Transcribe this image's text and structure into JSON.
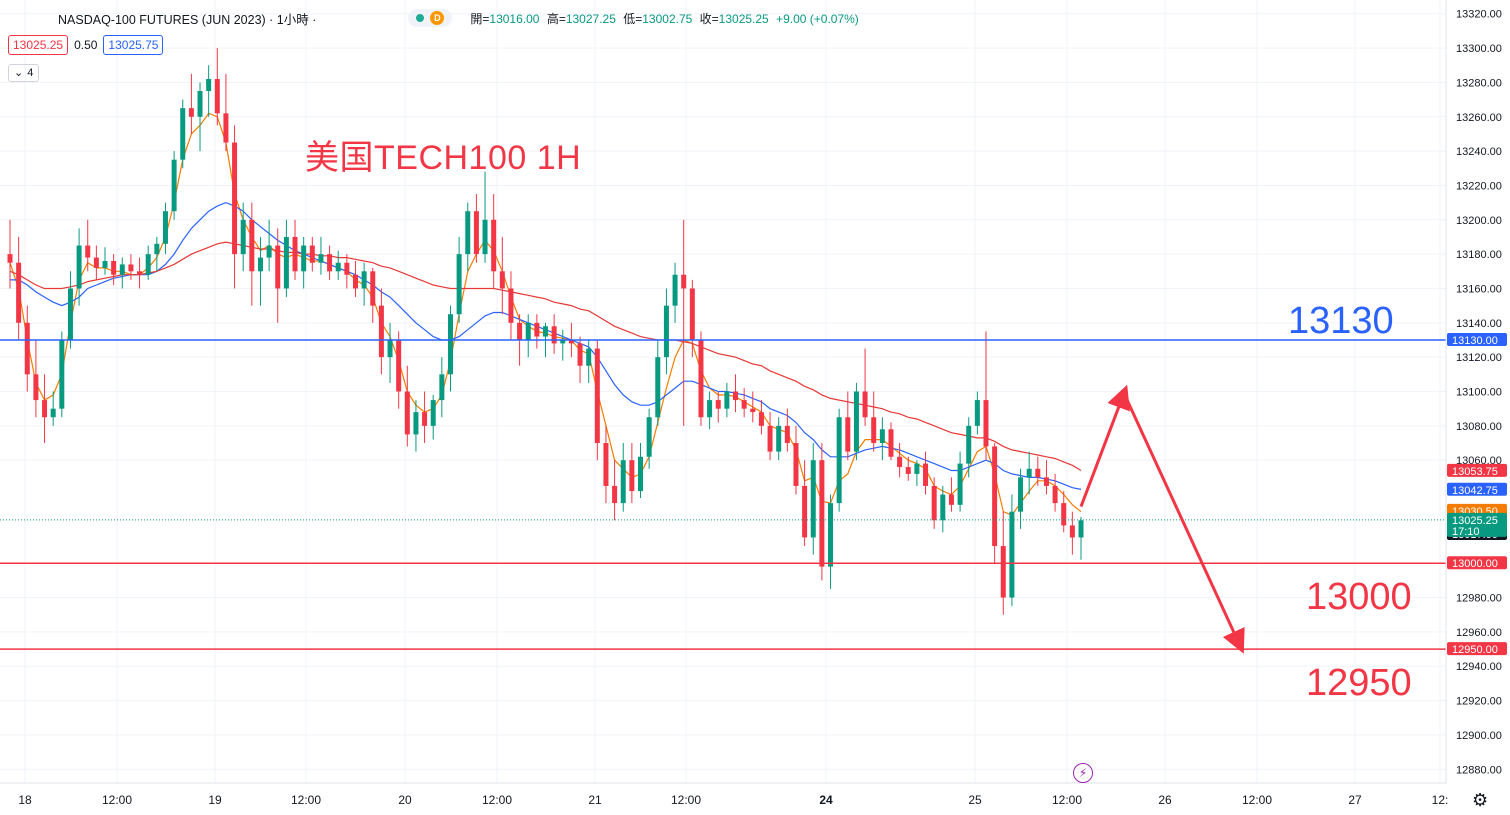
{
  "header": {
    "symbol_title": "NASDAQ-100 FUTURES (JUN 2023) · 1小時 ·",
    "ohlc": [
      {
        "k": "開=",
        "v": "13016.00"
      },
      {
        "k": "高=",
        "v": "13027.25"
      },
      {
        "k": "低=",
        "v": "13002.75"
      },
      {
        "k": "收=",
        "v": "13025.25"
      },
      {
        "k": "",
        "v": "+9.00 (+0.07%)"
      }
    ],
    "market_status_letter": "D",
    "sell_price": "13025.25",
    "spread": "0.50",
    "buy_price": "13025.75",
    "indicator_count": "4"
  },
  "overlay_title": "美国TECH100 1H",
  "levels": {
    "l13130": "13130",
    "l13000": "13000",
    "l12950": "12950"
  },
  "chart_data": {
    "type": "candlestick",
    "timeframe": "1H",
    "x_ticks": [
      "18",
      "12:00",
      "19",
      "12:00",
      "20",
      "12:00",
      "21",
      "12:00",
      "24",
      "25",
      "12:00",
      "26",
      "12:00",
      "27",
      "12:"
    ],
    "y_ticks": [
      13320,
      13300,
      13280,
      13260,
      13240,
      13220,
      13200,
      13180,
      13160,
      13140,
      13120,
      13100,
      13080,
      13060,
      12980,
      12960,
      12940,
      12920,
      12900,
      12880
    ],
    "y_tick_labels": [
      "13320.00",
      "13300.00",
      "13280.00",
      "13260.00",
      "13240.00",
      "13220.00",
      "13200.00",
      "13180.00",
      "13160.00",
      "13140.00",
      "13120.00",
      "13100.00",
      "13080.00",
      "13060.00",
      "12980.00",
      "12960.00",
      "12940.00",
      "12920.00",
      "12900.00",
      "12880.00"
    ],
    "ylim": [
      12872,
      13328
    ],
    "horizontal_lines": [
      {
        "value": 13130,
        "color": "#2962ff",
        "label": "13130.00"
      },
      {
        "value": 13000,
        "color": "#f23645",
        "label": "13000.00"
      },
      {
        "value": 12950,
        "color": "#f23645",
        "label": "12950.00"
      }
    ],
    "current_price": {
      "value": 13025.25,
      "label": "13025.25",
      "countdown": "17:10"
    },
    "price_tags": [
      {
        "value": 13053.75,
        "label": "13053.75",
        "color": "#f23645"
      },
      {
        "value": 13042.75,
        "label": "13042.75",
        "color": "#2962ff"
      },
      {
        "value": 13030.5,
        "label": "13030.50",
        "color": "#f57c00"
      },
      {
        "value": 13017.0,
        "label": "13017.00",
        "color": "#131722"
      }
    ],
    "candles_ohlc": [
      [
        13180,
        13200,
        13160,
        13175
      ],
      [
        13175,
        13190,
        13130,
        13140
      ],
      [
        13140,
        13150,
        13100,
        13110
      ],
      [
        13110,
        13130,
        13085,
        13095
      ],
      [
        13095,
        13110,
        13070,
        13085
      ],
      [
        13085,
        13100,
        13080,
        13090
      ],
      [
        13090,
        13135,
        13085,
        13130
      ],
      [
        13130,
        13170,
        13125,
        13160
      ],
      [
        13160,
        13195,
        13150,
        13185
      ],
      [
        13185,
        13200,
        13170,
        13178
      ],
      [
        13178,
        13185,
        13165,
        13172
      ],
      [
        13172,
        13184,
        13168,
        13176
      ],
      [
        13176,
        13180,
        13162,
        13168
      ],
      [
        13168,
        13178,
        13160,
        13174
      ],
      [
        13174,
        13180,
        13165,
        13170
      ],
      [
        13170,
        13178,
        13160,
        13168
      ],
      [
        13168,
        13185,
        13165,
        13180
      ],
      [
        13180,
        13190,
        13170,
        13186
      ],
      [
        13186,
        13210,
        13180,
        13205
      ],
      [
        13205,
        13240,
        13200,
        13235
      ],
      [
        13235,
        13270,
        13230,
        13265
      ],
      [
        13265,
        13285,
        13250,
        13260
      ],
      [
        13260,
        13280,
        13240,
        13275
      ],
      [
        13275,
        13290,
        13260,
        13282
      ],
      [
        13282,
        13300,
        13255,
        13262
      ],
      [
        13262,
        13285,
        13240,
        13245
      ],
      [
        13245,
        13255,
        13160,
        13180
      ],
      [
        13180,
        13210,
        13170,
        13200
      ],
      [
        13200,
        13210,
        13150,
        13170
      ],
      [
        13170,
        13190,
        13150,
        13178
      ],
      [
        13178,
        13200,
        13170,
        13185
      ],
      [
        13185,
        13195,
        13140,
        13160
      ],
      [
        13160,
        13200,
        13155,
        13190
      ],
      [
        13190,
        13200,
        13165,
        13170
      ],
      [
        13170,
        13190,
        13160,
        13185
      ],
      [
        13185,
        13190,
        13170,
        13175
      ],
      [
        13175,
        13190,
        13168,
        13180
      ],
      [
        13180,
        13185,
        13165,
        13170
      ],
      [
        13170,
        13182,
        13165,
        13175
      ],
      [
        13175,
        13180,
        13160,
        13168
      ],
      [
        13168,
        13176,
        13155,
        13160
      ],
      [
        13160,
        13175,
        13150,
        13170
      ],
      [
        13170,
        13172,
        13140,
        13150
      ],
      [
        13150,
        13160,
        13110,
        13120
      ],
      [
        13120,
        13140,
        13105,
        13130
      ],
      [
        13130,
        13135,
        13090,
        13100
      ],
      [
        13100,
        13115,
        13068,
        13075
      ],
      [
        13075,
        13095,
        13065,
        13088
      ],
      [
        13088,
        13100,
        13070,
        13080
      ],
      [
        13080,
        13098,
        13072,
        13095
      ],
      [
        13095,
        13120,
        13085,
        13110
      ],
      [
        13110,
        13150,
        13100,
        13145
      ],
      [
        13145,
        13190,
        13140,
        13180
      ],
      [
        13180,
        13210,
        13170,
        13205
      ],
      [
        13205,
        13215,
        13175,
        13180
      ],
      [
        13180,
        13228,
        13175,
        13200
      ],
      [
        13200,
        13215,
        13160,
        13170
      ],
      [
        13170,
        13190,
        13145,
        13160
      ],
      [
        13160,
        13170,
        13130,
        13140
      ],
      [
        13140,
        13145,
        13115,
        13130
      ],
      [
        13130,
        13145,
        13120,
        13140
      ],
      [
        13140,
        13145,
        13125,
        13132
      ],
      [
        13132,
        13140,
        13120,
        13138
      ],
      [
        13138,
        13145,
        13122,
        13128
      ],
      [
        13128,
        13136,
        13118,
        13130
      ],
      [
        13130,
        13140,
        13120,
        13128
      ],
      [
        13128,
        13132,
        13105,
        13115
      ],
      [
        13115,
        13130,
        13105,
        13125
      ],
      [
        13125,
        13130,
        13060,
        13070
      ],
      [
        13070,
        13080,
        13035,
        13045
      ],
      [
        13045,
        13060,
        13025,
        13035
      ],
      [
        13035,
        13070,
        13030,
        13060
      ],
      [
        13060,
        13070,
        13035,
        13042
      ],
      [
        13042,
        13070,
        13038,
        13062
      ],
      [
        13062,
        13090,
        13055,
        13085
      ],
      [
        13085,
        13130,
        13080,
        13120
      ],
      [
        13120,
        13160,
        13110,
        13150
      ],
      [
        13150,
        13175,
        13140,
        13168
      ],
      [
        13168,
        13200,
        13080,
        13160
      ],
      [
        13160,
        13165,
        13120,
        13130
      ],
      [
        13130,
        13135,
        13080,
        13085
      ],
      [
        13085,
        13100,
        13078,
        13095
      ],
      [
        13095,
        13100,
        13082,
        13090
      ],
      [
        13090,
        13105,
        13085,
        13100
      ],
      [
        13100,
        13110,
        13088,
        13095
      ],
      [
        13095,
        13102,
        13085,
        13090
      ],
      [
        13090,
        13100,
        13082,
        13088
      ],
      [
        13088,
        13095,
        13075,
        13080
      ],
      [
        13080,
        13088,
        13060,
        13065
      ],
      [
        13065,
        13085,
        13060,
        13080
      ],
      [
        13080,
        13090,
        13065,
        13070
      ],
      [
        13070,
        13080,
        13040,
        13045
      ],
      [
        13045,
        13060,
        13010,
        13015
      ],
      [
        13015,
        13070,
        13005,
        13060
      ],
      [
        13060,
        13070,
        12990,
        12998
      ],
      [
        12998,
        13040,
        12985,
        13035
      ],
      [
        13035,
        13090,
        13030,
        13085
      ],
      [
        13085,
        13100,
        13060,
        13065
      ],
      [
        13065,
        13105,
        13060,
        13100
      ],
      [
        13100,
        13125,
        13080,
        13085
      ],
      [
        13085,
        13100,
        13065,
        13070
      ],
      [
        13070,
        13085,
        13060,
        13078
      ],
      [
        13078,
        13082,
        13060,
        13062
      ],
      [
        13062,
        13070,
        13050,
        13056
      ],
      [
        13056,
        13062,
        13048,
        13052
      ],
      [
        13052,
        13060,
        13045,
        13058
      ],
      [
        13058,
        13065,
        13040,
        13045
      ],
      [
        13045,
        13050,
        13020,
        13025
      ],
      [
        13025,
        13045,
        13018,
        13040
      ],
      [
        13040,
        13050,
        13030,
        13034
      ],
      [
        13034,
        13065,
        13030,
        13058
      ],
      [
        13058,
        13085,
        13050,
        13080
      ],
      [
        13080,
        13100,
        13075,
        13095
      ],
      [
        13095,
        13135,
        13060,
        13068
      ],
      [
        13068,
        13070,
        13000,
        13010
      ],
      [
        13010,
        13030,
        12970,
        12980
      ],
      [
        12980,
        13040,
        12975,
        13030
      ],
      [
        13030,
        13055,
        13020,
        13050
      ],
      [
        13050,
        13065,
        13040,
        13055
      ],
      [
        13055,
        13062,
        13045,
        13050
      ],
      [
        13050,
        13060,
        13040,
        13045
      ],
      [
        13045,
        13052,
        13030,
        13035
      ],
      [
        13035,
        13042,
        13018,
        13022
      ],
      [
        13022,
        13030,
        13005,
        13015
      ],
      [
        13015,
        13027,
        13002,
        13025
      ]
    ],
    "moving_averages": [
      {
        "color": "#f57c00",
        "values": [
          13175,
          13160,
          13130,
          13105,
          13095,
          13098,
          13110,
          13140,
          13165,
          13175,
          13172,
          13172,
          13170,
          13170,
          13168,
          13168,
          13172,
          13178,
          13190,
          13210,
          13235,
          13250,
          13255,
          13262,
          13260,
          13245,
          13215,
          13200,
          13190,
          13182,
          13185,
          13180,
          13178,
          13180,
          13178,
          13176,
          13176,
          13174,
          13172,
          13170,
          13165,
          13162,
          13155,
          13140,
          13132,
          13118,
          13100,
          13092,
          13088,
          13090,
          13098,
          13118,
          13145,
          13170,
          13180,
          13188,
          13182,
          13170,
          13155,
          13142,
          13138,
          13135,
          13134,
          13132,
          13131,
          13130,
          13124,
          13122,
          13100,
          13080,
          13060,
          13055,
          13050,
          13052,
          13062,
          13082,
          13102,
          13120,
          13130,
          13128,
          13112,
          13102,
          13098,
          13098,
          13097,
          13094,
          13091,
          13088,
          13080,
          13078,
          13076,
          13066,
          13048,
          13050,
          13036,
          13035,
          13048,
          13052,
          13065,
          13072,
          13072,
          13072,
          13068,
          13064,
          13060,
          13058,
          13055,
          13045,
          13042,
          13040,
          13045,
          13055,
          13065,
          13068,
          13052,
          13030,
          13028,
          13035,
          13042,
          13048,
          13048,
          13045,
          13040,
          13034,
          13030
        ]
      },
      {
        "color": "#2962ff",
        "values": [
          13165,
          13165,
          13162,
          13158,
          13155,
          13152,
          13150,
          13152,
          13155,
          13160,
          13162,
          13164,
          13166,
          13167,
          13168,
          13168,
          13168,
          13170,
          13174,
          13180,
          13188,
          13195,
          13200,
          13205,
          13208,
          13210,
          13208,
          13205,
          13200,
          13196,
          13192,
          13188,
          13185,
          13182,
          13180,
          13178,
          13176,
          13174,
          13172,
          13170,
          13168,
          13165,
          13162,
          13158,
          13155,
          13150,
          13145,
          13140,
          13136,
          13132,
          13130,
          13130,
          13132,
          13136,
          13140,
          13144,
          13146,
          13146,
          13144,
          13142,
          13140,
          13138,
          13136,
          13134,
          13132,
          13130,
          13128,
          13126,
          13120,
          13112,
          13104,
          13098,
          13094,
          13092,
          13092,
          13094,
          13098,
          13102,
          13106,
          13106,
          13104,
          13102,
          13100,
          13100,
          13099,
          13098,
          13096,
          13094,
          13090,
          13088,
          13086,
          13082,
          13076,
          13072,
          13066,
          13062,
          13062,
          13062,
          13064,
          13066,
          13067,
          13068,
          13067,
          13066,
          13064,
          13062,
          13060,
          13058,
          13056,
          13054,
          13054,
          13056,
          13058,
          13060,
          13058,
          13054,
          13052,
          13051,
          13050,
          13050,
          13049,
          13048,
          13046,
          13044,
          13043
        ]
      },
      {
        "color": "#e53935",
        "values": [
          13170,
          13168,
          13165,
          13162,
          13160,
          13160,
          13160,
          13161,
          13162,
          13164,
          13165,
          13166,
          13167,
          13168,
          13168,
          13168,
          13169,
          13170,
          13172,
          13174,
          13177,
          13180,
          13182,
          13184,
          13186,
          13187,
          13186,
          13185,
          13184,
          13183,
          13183,
          13182,
          13181,
          13181,
          13180,
          13180,
          13179,
          13179,
          13178,
          13178,
          13177,
          13176,
          13175,
          13173,
          13172,
          13170,
          13168,
          13166,
          13164,
          13162,
          13161,
          13160,
          13160,
          13160,
          13160,
          13160,
          13160,
          13159,
          13158,
          13157,
          13156,
          13155,
          13154,
          13152,
          13151,
          13150,
          13148,
          13147,
          13144,
          13141,
          13138,
          13136,
          13134,
          13132,
          13131,
          13130,
          13130,
          13130,
          13129,
          13128,
          13126,
          13124,
          13122,
          13121,
          13120,
          13118,
          13116,
          13115,
          13112,
          13110,
          13108,
          13106,
          13103,
          13101,
          13098,
          13096,
          13095,
          13094,
          13093,
          13092,
          13091,
          13090,
          13088,
          13087,
          13085,
          13084,
          13082,
          13080,
          13078,
          13076,
          13075,
          13074,
          13073,
          13073,
          13071,
          13068,
          13066,
          13065,
          13064,
          13063,
          13062,
          13061,
          13059,
          13057,
          13054
        ]
      }
    ],
    "forecast_path": [
      {
        "label": "13099",
        "value": 13099
      },
      {
        "label": "12952",
        "value": 12952
      }
    ]
  }
}
